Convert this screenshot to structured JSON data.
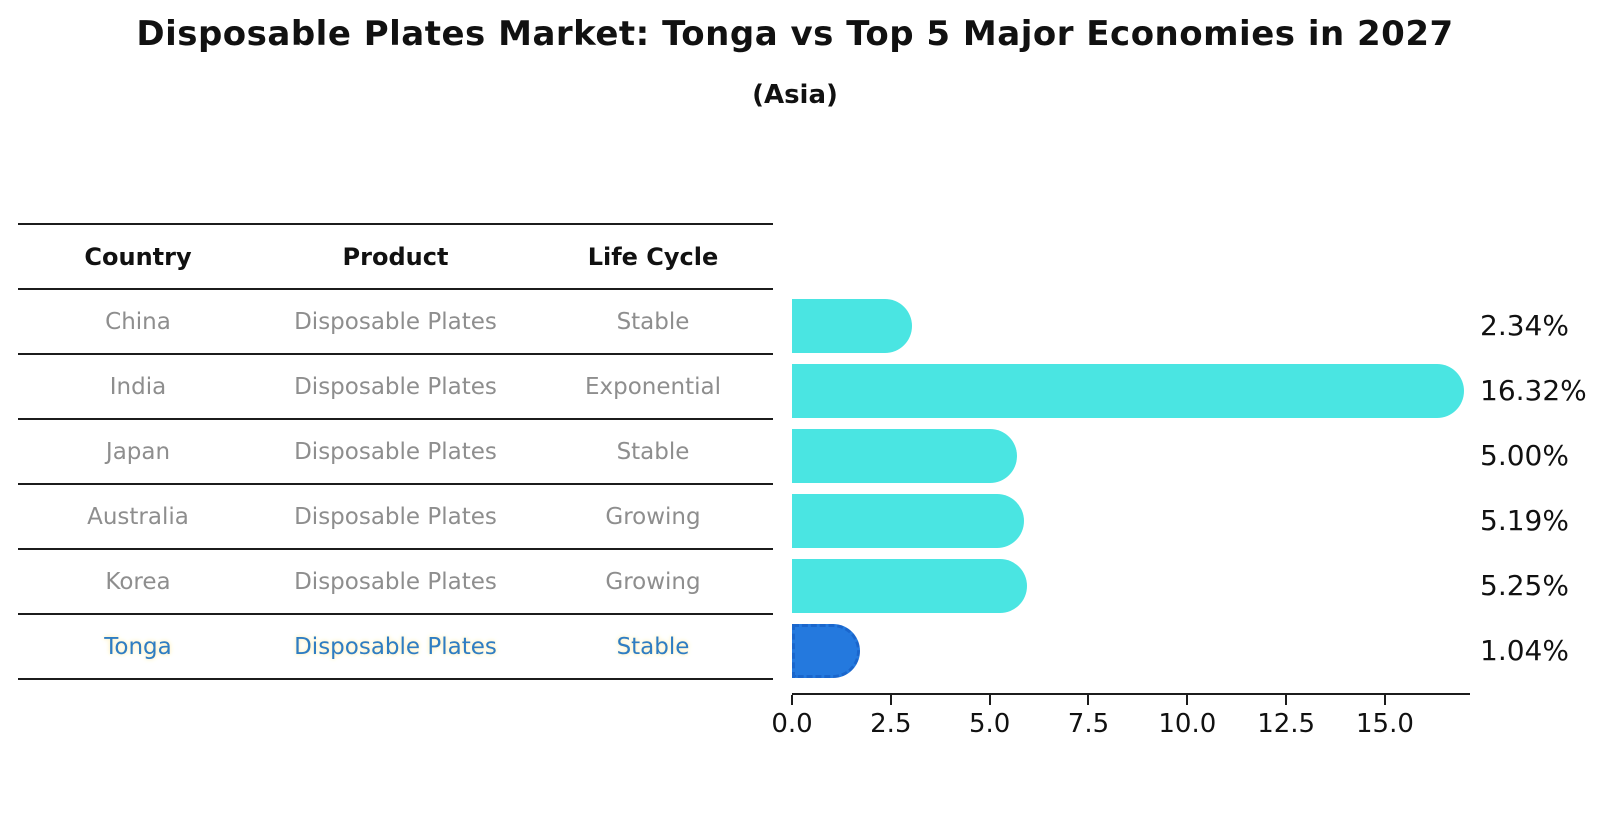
{
  "title": "Disposable Plates Market: Tonga vs Top 5 Major Economies in 2027",
  "subtitle": "(Asia)",
  "table": {
    "headers": [
      "Country",
      "Product",
      "Life Cycle"
    ],
    "rows": [
      {
        "country": "China",
        "product": "Disposable Plates",
        "life_cycle": "Stable",
        "highlight": false
      },
      {
        "country": "India",
        "product": "Disposable Plates",
        "life_cycle": "Exponential",
        "highlight": false
      },
      {
        "country": "Japan",
        "product": "Disposable Plates",
        "life_cycle": "Stable",
        "highlight": false
      },
      {
        "country": "Australia",
        "product": "Disposable Plates",
        "life_cycle": "Growing",
        "highlight": false
      },
      {
        "country": "Korea",
        "product": "Disposable Plates",
        "life_cycle": "Growing",
        "highlight": false
      },
      {
        "country": "Tonga",
        "product": "Disposable Plates",
        "life_cycle": "Stable",
        "highlight": true
      }
    ]
  },
  "chart_data": {
    "type": "bar",
    "orientation": "horizontal",
    "categories": [
      "China",
      "India",
      "Japan",
      "Australia",
      "Korea",
      "Tonga"
    ],
    "values": [
      2.34,
      16.32,
      5.0,
      5.19,
      5.25,
      1.04
    ],
    "value_labels": [
      "2.34%",
      "16.32%",
      "5.00%",
      "5.19%",
      "5.25%",
      "1.04%"
    ],
    "x_ticks": [
      0.0,
      2.5,
      5.0,
      7.5,
      10.0,
      12.5,
      15.0
    ],
    "x_tick_labels": [
      "0.0",
      "2.5",
      "5.0",
      "7.5",
      "10.0",
      "12.5",
      "15.0"
    ],
    "xlim": [
      0,
      17.1
    ],
    "grid": false,
    "legend": "none",
    "highlight_index": 5,
    "bar_color": "#4ae5e2",
    "highlight_bar_color": "#2479de",
    "highlight_border_color": "#1a66cc"
  },
  "colors": {
    "text_primary": "#111111",
    "text_muted": "#8e8e8e",
    "highlight_text": "#2e7dc3",
    "axis": "#1c1c1c",
    "background": "#ffffff"
  }
}
